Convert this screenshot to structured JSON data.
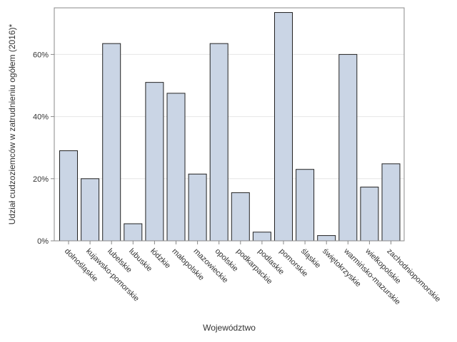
{
  "chart_data": {
    "type": "bar",
    "title": "",
    "xlabel": "Województwo",
    "ylabel": "Udział cudzoziemców w zatrudnieniu ogółem (2016)*",
    "categories": [
      "dolnośląskie",
      "kujawsko-pomorskie",
      "lubelskie",
      "lubuskie",
      "łódzkie",
      "małopolskie",
      "mazowieckie",
      "opolskie",
      "podkarpackie",
      "podlaskie",
      "pomorskie",
      "śląskie",
      "świętokrzyskie",
      "warmińsko-mazurskie",
      "wielkopolskie",
      "zachodniopomorskie"
    ],
    "values": [
      0.29,
      0.2,
      0.635,
      0.055,
      0.51,
      0.475,
      0.215,
      0.635,
      0.155,
      0.028,
      0.735,
      0.23,
      0.017,
      0.6,
      0.173,
      0.248
    ],
    "ylim": [
      0,
      0.75
    ],
    "yticks": [
      0,
      0.2,
      0.4,
      0.6
    ],
    "ytick_labels": [
      "0%",
      "20%",
      "40%",
      "60%"
    ],
    "grid": "horizontal",
    "colors": {
      "bar_fill": "#cad5e5",
      "bar_stroke": "#222222",
      "grid": "#e6e6e6",
      "frame": "#888888"
    }
  }
}
